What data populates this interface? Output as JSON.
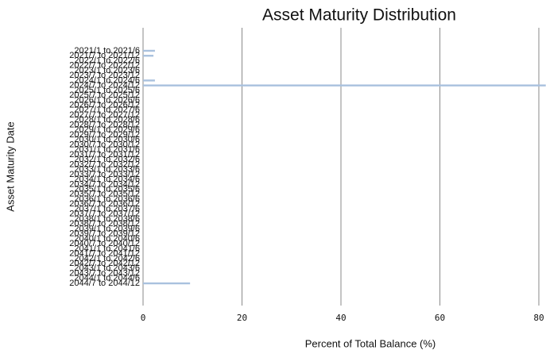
{
  "chart_data": {
    "type": "barh",
    "title": "Asset Maturity Distribution",
    "xlabel": "Percent of Total Balance (%)",
    "ylabel": "Asset Maturity Date",
    "categories": [
      "2021/1 to 2021/6",
      "2021/7 to 2021/12",
      "2022/1 to 2022/6",
      "2022/7 to 2022/12",
      "2023/1 to 2023/6",
      "2023/7 to 2023/12",
      "2024/1 to 2024/6",
      "2024/7 to 2024/12",
      "2025/1 to 2025/6",
      "2025/7 to 2025/12",
      "2026/1 to 2026/6",
      "2026/7 to 2026/12",
      "2027/1 to 2027/6",
      "2027/7 to 2027/12",
      "2028/1 to 2028/6",
      "2028/7 to 2028/12",
      "2029/1 to 2029/6",
      "2029/7 to 2029/12",
      "2030/1 to 2030/6",
      "2030/7 to 2030/12",
      "2031/1 to 2031/6",
      "2031/7 to 2031/12",
      "2032/1 to 2032/6",
      "2032/7 to 2032/12",
      "2033/1 to 2033/6",
      "2033/7 to 2033/12",
      "2034/1 to 2034/6",
      "2034/7 to 2034/12",
      "2035/1 to 2035/6",
      "2035/7 to 2035/12",
      "2036/1 to 2036/6",
      "2036/7 to 2036/12",
      "2037/1 to 2037/6",
      "2037/7 to 2037/12",
      "2038/1 to 2038/6",
      "2038/7 to 2038/12",
      "2039/1 to 2039/6",
      "2039/7 to 2039/12",
      "2040/1 to 2040/6",
      "2040/7 to 2040/12",
      "2041/1 to 2041/6",
      "2041/7 to 2041/12",
      "2042/1 to 2042/6",
      "2042/7 to 2042/12",
      "2043/1 to 2043/6",
      "2043/7 to 2043/12",
      "2044/1 to 2044/6",
      "2044/7 to 2044/12"
    ],
    "values": [
      2.4,
      2.1,
      0,
      0,
      0,
      0,
      2.4,
      81.4,
      0,
      0,
      0,
      0,
      0,
      0,
      0,
      0,
      0,
      0,
      0,
      0,
      0,
      0,
      0,
      0,
      0,
      0,
      0,
      0,
      0,
      0,
      0,
      0,
      0,
      0,
      0,
      0,
      0,
      0,
      0,
      0,
      0,
      0,
      0,
      0,
      0,
      0,
      0,
      9.5
    ],
    "color": "#a9c1de",
    "xlim": [
      0,
      81.4
    ],
    "xticks": [
      0,
      20,
      40,
      60,
      80
    ],
    "grid": true
  }
}
